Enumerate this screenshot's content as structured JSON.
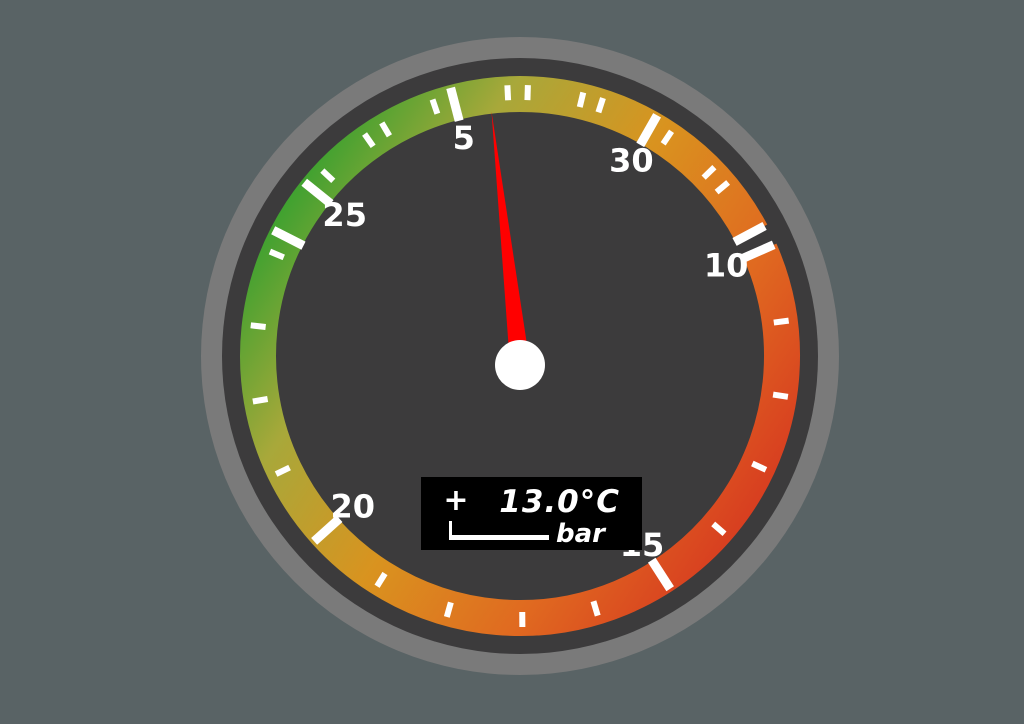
{
  "background_color": "#596365",
  "gauge": {
    "min": 2,
    "max": 32,
    "major_labels": [
      "5",
      "10",
      "15",
      "20",
      "25",
      "30"
    ],
    "major_values": [
      5,
      10,
      15,
      20,
      25,
      30
    ],
    "minor_step": 1,
    "colored_band": {
      "from": 10,
      "to": 32
    },
    "band_colors": [
      "#2aa02e",
      "#a8a83a",
      "#d9931f",
      "#e06a20",
      "#d73a20"
    ],
    "needle_value": 5.5,
    "needle_color": "#ff0000",
    "hub_color": "#ffffff",
    "bezel_color": "#7a7a7a",
    "face_color": "#3c3b3c"
  },
  "display": {
    "sign": "+",
    "temperature": "13.0°C",
    "unit": "bar",
    "bar_fill": 1.0
  }
}
